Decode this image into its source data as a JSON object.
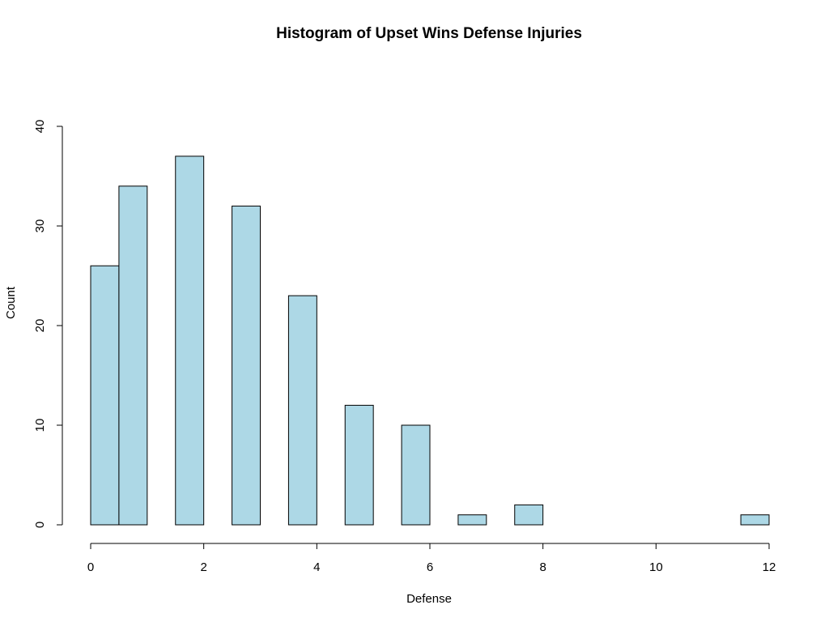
{
  "chart_data": {
    "type": "bar",
    "title": "Histogram of Upset Wins Defense Injuries",
    "xlabel": "Defense",
    "ylabel": "Count",
    "bin_width": 0.5,
    "bins": [
      {
        "start": 0,
        "end": 0.5,
        "count": 26
      },
      {
        "start": 0.5,
        "end": 1,
        "count": 34
      },
      {
        "start": 1,
        "end": 1.5,
        "count": 0
      },
      {
        "start": 1.5,
        "end": 2,
        "count": 37
      },
      {
        "start": 2,
        "end": 2.5,
        "count": 0
      },
      {
        "start": 2.5,
        "end": 3,
        "count": 32
      },
      {
        "start": 3,
        "end": 3.5,
        "count": 0
      },
      {
        "start": 3.5,
        "end": 4,
        "count": 23
      },
      {
        "start": 4,
        "end": 4.5,
        "count": 0
      },
      {
        "start": 4.5,
        "end": 5,
        "count": 12
      },
      {
        "start": 5,
        "end": 5.5,
        "count": 0
      },
      {
        "start": 5.5,
        "end": 6,
        "count": 10
      },
      {
        "start": 6,
        "end": 6.5,
        "count": 0
      },
      {
        "start": 6.5,
        "end": 7,
        "count": 1
      },
      {
        "start": 7,
        "end": 7.5,
        "count": 0
      },
      {
        "start": 7.5,
        "end": 8,
        "count": 2
      },
      {
        "start": 8,
        "end": 8.5,
        "count": 0
      },
      {
        "start": 8.5,
        "end": 9,
        "count": 0
      },
      {
        "start": 9,
        "end": 9.5,
        "count": 0
      },
      {
        "start": 9.5,
        "end": 10,
        "count": 0
      },
      {
        "start": 10,
        "end": 10.5,
        "count": 0
      },
      {
        "start": 10.5,
        "end": 11,
        "count": 0
      },
      {
        "start": 11,
        "end": 11.5,
        "count": 0
      },
      {
        "start": 11.5,
        "end": 12,
        "count": 1
      }
    ],
    "xlim": [
      0,
      12
    ],
    "ylim": [
      0,
      40
    ],
    "x_ticks": [
      0,
      2,
      4,
      6,
      8,
      10,
      12
    ],
    "y_ticks": [
      0,
      10,
      20,
      30,
      40
    ],
    "grid": false,
    "bar_color": "#add8e6",
    "border_color": "#000000"
  }
}
